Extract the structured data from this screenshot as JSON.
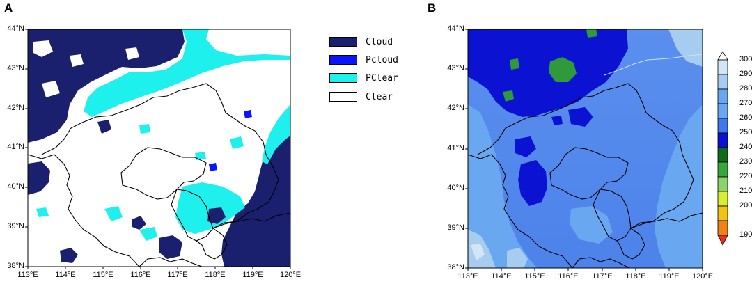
{
  "panels": {
    "a": {
      "letter": "A"
    },
    "b": {
      "letter": "B"
    }
  },
  "lat_labels": [
    "44°N",
    "43°N",
    "42°N",
    "41°N",
    "40°N",
    "39°N",
    "38°N"
  ],
  "lon_labels": [
    "113°E",
    "114°E",
    "115°E",
    "116°E",
    "117°E",
    "118°E",
    "119°E",
    "120°E"
  ],
  "legend": [
    {
      "label": "Cloud",
      "color": "#1a1f6e"
    },
    {
      "label": "Pcloud",
      "color": "#0a14ff"
    },
    {
      "label": "PClear",
      "color": "#1ef0ee"
    },
    {
      "label": "Clear",
      "color": "#ffffff"
    }
  ],
  "colorbar": {
    "ticks": [
      "300",
      "290",
      "280",
      "270",
      "260",
      "250",
      "240",
      "230",
      "220",
      "210",
      "200",
      "190"
    ],
    "colors": [
      "#ffffff",
      "#d2e6f4",
      "#a6cdef",
      "#6aa7f1",
      "#3f78ee",
      "#0b12d2",
      "#0d6b1a",
      "#35a83b",
      "#8bd36a",
      "#d8ee32",
      "#f2c215",
      "#f0801a",
      "#e0341c"
    ]
  }
}
